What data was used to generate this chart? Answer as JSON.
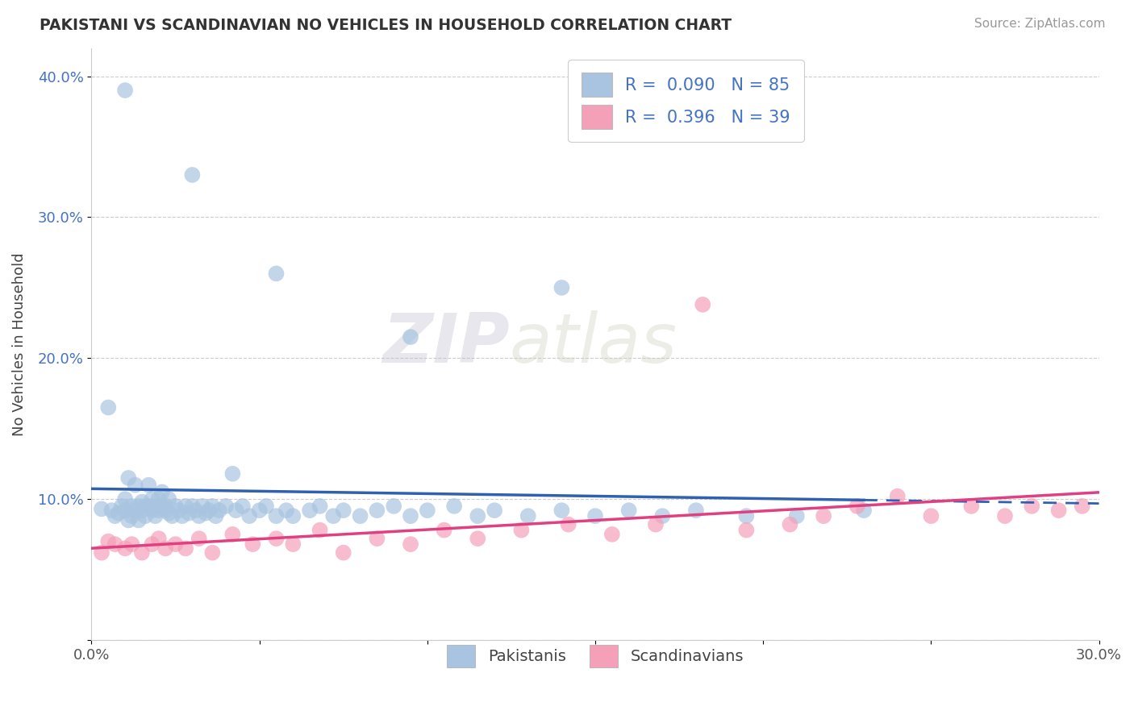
{
  "title": "PAKISTANI VS SCANDINAVIAN NO VEHICLES IN HOUSEHOLD CORRELATION CHART",
  "source": "Source: ZipAtlas.com",
  "ylabel": "No Vehicles in Household",
  "x_min": 0.0,
  "x_max": 0.3,
  "y_min": 0.0,
  "y_max": 0.42,
  "x_ticks": [
    0.0,
    0.05,
    0.1,
    0.15,
    0.2,
    0.25,
    0.3
  ],
  "y_ticks": [
    0.0,
    0.1,
    0.2,
    0.3,
    0.4
  ],
  "pakistani_R": 0.09,
  "pakistani_N": 85,
  "scandinavian_R": 0.396,
  "scandinavian_N": 39,
  "pakistani_color": "#a8c4e0",
  "pakistani_line_color": "#3060b0",
  "scandinavian_color": "#f4a0b8",
  "scandinavian_line_color": "#e04080",
  "legend_label_1": "Pakistanis",
  "legend_label_2": "Scandinavians",
  "watermark_zip": "ZIP",
  "watermark_atlas": "atlas",
  "pakistani_x": [
    0.003,
    0.005,
    0.006,
    0.007,
    0.008,
    0.009,
    0.01,
    0.01,
    0.011,
    0.011,
    0.012,
    0.012,
    0.013,
    0.013,
    0.014,
    0.014,
    0.015,
    0.015,
    0.016,
    0.016,
    0.017,
    0.017,
    0.018,
    0.018,
    0.019,
    0.019,
    0.02,
    0.02,
    0.021,
    0.021,
    0.022,
    0.022,
    0.023,
    0.023,
    0.024,
    0.025,
    0.026,
    0.027,
    0.028,
    0.029,
    0.03,
    0.031,
    0.032,
    0.033,
    0.034,
    0.035,
    0.036,
    0.037,
    0.038,
    0.04,
    0.042,
    0.043,
    0.045,
    0.047,
    0.05,
    0.052,
    0.055,
    0.058,
    0.06,
    0.065,
    0.068,
    0.072,
    0.075,
    0.08,
    0.085,
    0.09,
    0.095,
    0.1,
    0.108,
    0.115,
    0.12,
    0.13,
    0.14,
    0.15,
    0.16,
    0.17,
    0.18,
    0.195,
    0.21,
    0.23,
    0.01,
    0.03,
    0.055,
    0.095,
    0.14
  ],
  "pakistani_y": [
    0.093,
    0.165,
    0.092,
    0.088,
    0.09,
    0.095,
    0.1,
    0.092,
    0.085,
    0.115,
    0.095,
    0.088,
    0.092,
    0.11,
    0.095,
    0.085,
    0.098,
    0.092,
    0.095,
    0.088,
    0.095,
    0.11,
    0.092,
    0.1,
    0.088,
    0.095,
    0.1,
    0.092,
    0.095,
    0.105,
    0.092,
    0.095,
    0.09,
    0.1,
    0.088,
    0.095,
    0.092,
    0.088,
    0.095,
    0.09,
    0.095,
    0.092,
    0.088,
    0.095,
    0.09,
    0.092,
    0.095,
    0.088,
    0.092,
    0.095,
    0.118,
    0.092,
    0.095,
    0.088,
    0.092,
    0.095,
    0.088,
    0.092,
    0.088,
    0.092,
    0.095,
    0.088,
    0.092,
    0.088,
    0.092,
    0.095,
    0.088,
    0.092,
    0.095,
    0.088,
    0.092,
    0.088,
    0.092,
    0.088,
    0.092,
    0.088,
    0.092,
    0.088,
    0.088,
    0.092,
    0.39,
    0.33,
    0.26,
    0.215,
    0.25
  ],
  "scandinavian_x": [
    0.003,
    0.005,
    0.007,
    0.01,
    0.012,
    0.015,
    0.018,
    0.02,
    0.022,
    0.025,
    0.028,
    0.032,
    0.036,
    0.042,
    0.048,
    0.055,
    0.06,
    0.068,
    0.075,
    0.085,
    0.095,
    0.105,
    0.115,
    0.128,
    0.142,
    0.155,
    0.168,
    0.182,
    0.195,
    0.208,
    0.218,
    0.228,
    0.24,
    0.25,
    0.262,
    0.272,
    0.28,
    0.288,
    0.295
  ],
  "scandinavian_y": [
    0.062,
    0.07,
    0.068,
    0.065,
    0.068,
    0.062,
    0.068,
    0.072,
    0.065,
    0.068,
    0.065,
    0.072,
    0.062,
    0.075,
    0.068,
    0.072,
    0.068,
    0.078,
    0.062,
    0.072,
    0.068,
    0.078,
    0.072,
    0.078,
    0.082,
    0.075,
    0.082,
    0.238,
    0.078,
    0.082,
    0.088,
    0.095,
    0.102,
    0.088,
    0.095,
    0.088,
    0.095,
    0.092,
    0.095
  ]
}
